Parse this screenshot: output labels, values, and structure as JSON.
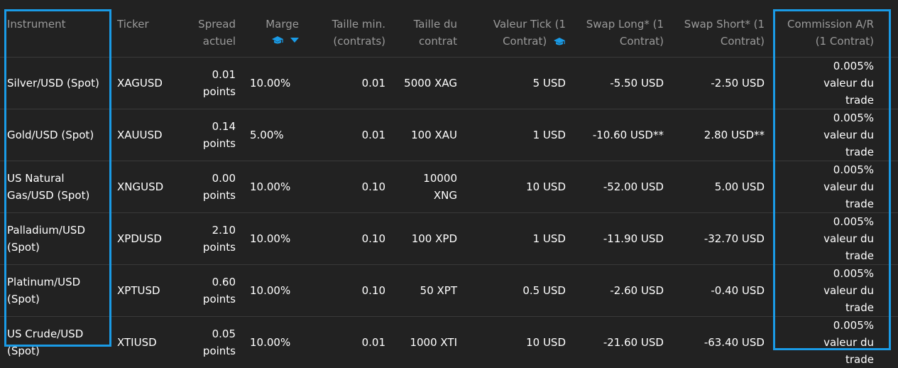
{
  "table": {
    "columns": [
      {
        "key": "instrument",
        "label": "Instrument"
      },
      {
        "key": "ticker",
        "label": "Ticker"
      },
      {
        "key": "spread",
        "label": "Spread actuel"
      },
      {
        "key": "marge",
        "label": "Marge"
      },
      {
        "key": "min_size",
        "label": "Taille min. (contrats)"
      },
      {
        "key": "contract_size",
        "label": "Taille du contrat"
      },
      {
        "key": "tick_value",
        "label": "Valeur Tick (1 Contrat)"
      },
      {
        "key": "swap_long",
        "label": "Swap Long* (1 Contrat)"
      },
      {
        "key": "swap_short",
        "label": "Swap Short* (1 Contrat)"
      },
      {
        "key": "commission",
        "label": "Commission A/R (1 Contrat)"
      }
    ],
    "rows": [
      {
        "instrument": "Silver/USD (Spot)",
        "ticker": "XAGUSD",
        "spread": "0.01 points",
        "marge": "10.00%",
        "min_size": "0.01",
        "contract_size": "5000 XAG",
        "tick_value": "5 USD",
        "swap_long": "-5.50 USD",
        "swap_short": "-2.50 USD",
        "commission": "0.005% valeur du trade"
      },
      {
        "instrument": "Gold/USD (Spot)",
        "ticker": "XAUUSD",
        "spread": "0.14 points",
        "marge": "5.00%",
        "min_size": "0.01",
        "contract_size": "100 XAU",
        "tick_value": "1 USD",
        "swap_long": "-10.60 USD**",
        "swap_short": "2.80 USD**",
        "commission": "0.005% valeur du trade"
      },
      {
        "instrument": "US Natural Gas/USD (Spot)",
        "ticker": "XNGUSD",
        "spread": "0.00 points",
        "marge": "10.00%",
        "min_size": "0.10",
        "contract_size": "10000 XNG",
        "tick_value": "10 USD",
        "swap_long": "-52.00 USD",
        "swap_short": "5.00 USD",
        "commission": "0.005% valeur du trade"
      },
      {
        "instrument": "Palladium/USD (Spot)",
        "ticker": "XPDUSD",
        "spread": "2.10 points",
        "marge": "10.00%",
        "min_size": "0.10",
        "contract_size": "100 XPD",
        "tick_value": "1 USD",
        "swap_long": "-11.90 USD",
        "swap_short": "-32.70 USD",
        "commission": "0.005% valeur du trade"
      },
      {
        "instrument": "Platinum/USD (Spot)",
        "ticker": "XPTUSD",
        "spread": "0.60 points",
        "marge": "10.00%",
        "min_size": "0.10",
        "contract_size": "50 XPT",
        "tick_value": "0.5 USD",
        "swap_long": "-2.60 USD",
        "swap_short": "-0.40 USD",
        "commission": "0.005% valeur du trade"
      },
      {
        "instrument": "US Crude/USD (Spot)",
        "ticker": "XTIUSD",
        "spread": "0.05 points",
        "marge": "10.00%",
        "min_size": "0.01",
        "contract_size": "1000 XTI",
        "tick_value": "10 USD",
        "swap_long": "-21.60 USD",
        "swap_short": "-63.40 USD",
        "commission": "0.005% valeur du trade"
      }
    ]
  },
  "icons": {
    "marge_header": [
      "graduation-cap-icon",
      "caret-down-icon"
    ],
    "tick_header": [
      "graduation-cap-icon"
    ]
  },
  "colors": {
    "background": "#222222",
    "header_text": "#9a9a9a",
    "cell_text": "#ffffff",
    "highlight": "#1a9be6",
    "divider": "#3a3a3a"
  }
}
